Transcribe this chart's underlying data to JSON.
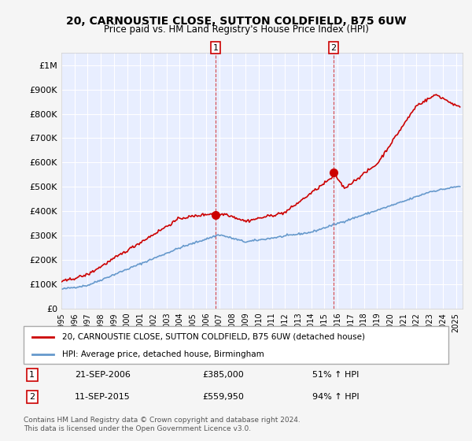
{
  "title": "20, CARNOUSTIE CLOSE, SUTTON COLDFIELD, B75 6UW",
  "subtitle": "Price paid vs. HM Land Registry's House Price Index (HPI)",
  "ylabel_ticks": [
    "£0",
    "£100K",
    "£200K",
    "£300K",
    "£400K",
    "£500K",
    "£600K",
    "£700K",
    "£800K",
    "£900K",
    "£1M"
  ],
  "ytick_values": [
    0,
    100000,
    200000,
    300000,
    400000,
    500000,
    600000,
    700000,
    800000,
    900000,
    1000000
  ],
  "ylim": [
    0,
    1050000
  ],
  "background_color": "#f0f4ff",
  "plot_bg_color": "#e8eeff",
  "grid_color": "#ffffff",
  "red_line_color": "#cc0000",
  "blue_line_color": "#6699cc",
  "marker1_date": 2006.72,
  "marker1_value": 385000,
  "marker1_label": "1",
  "marker2_date": 2015.69,
  "marker2_value": 559950,
  "marker2_label": "2",
  "legend_line1": "20, CARNOUSTIE CLOSE, SUTTON COLDFIELD, B75 6UW (detached house)",
  "legend_line2": "HPI: Average price, detached house, Birmingham",
  "annotation1_date": "21-SEP-2006",
  "annotation1_price": "£385,000",
  "annotation1_hpi": "51% ↑ HPI",
  "annotation2_date": "11-SEP-2015",
  "annotation2_price": "£559,950",
  "annotation2_hpi": "94% ↑ HPI",
  "footer": "Contains HM Land Registry data © Crown copyright and database right 2024.\nThis data is licensed under the Open Government Licence v3.0.",
  "xmin": 1995,
  "xmax": 2025.5
}
